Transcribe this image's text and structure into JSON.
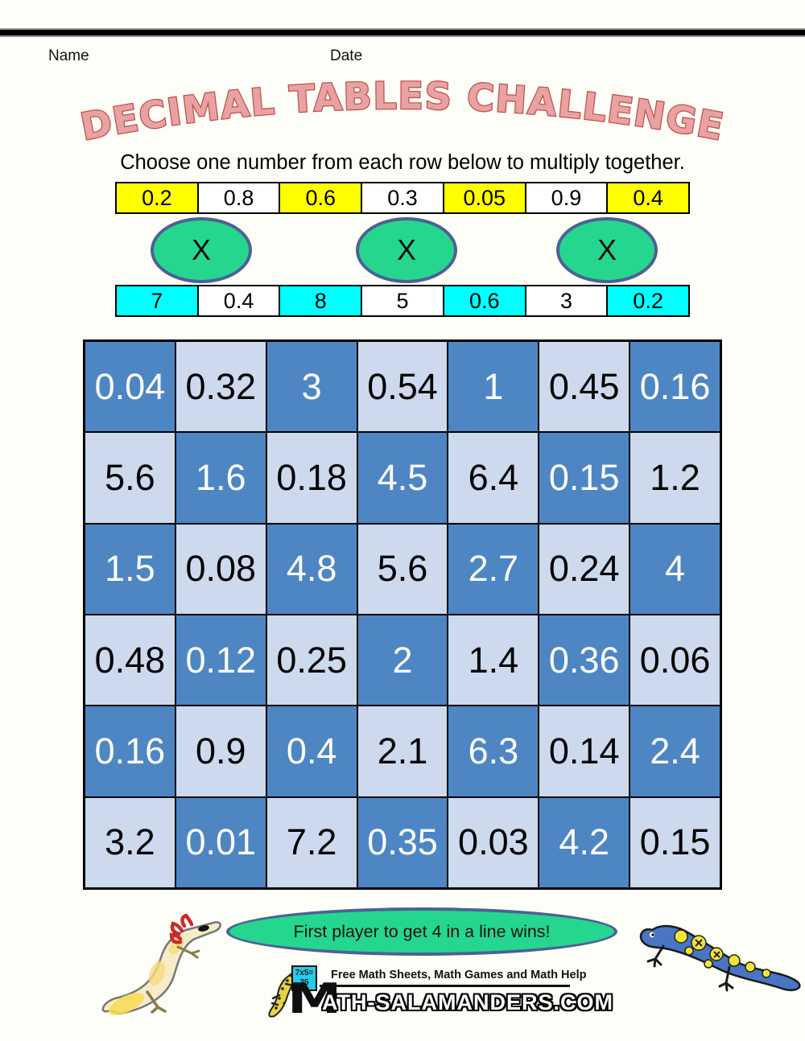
{
  "header": {
    "name_label": "Name",
    "date_label": "Date"
  },
  "title": {
    "text": "DECIMAL TABLES CHALLENGE"
  },
  "instruction": "Choose one number from each row below to multiply together.",
  "factor_rows": {
    "top": {
      "highlight": "yellow",
      "cells": [
        {
          "value": "0.2",
          "highlighted": true
        },
        {
          "value": "0.8",
          "highlighted": false
        },
        {
          "value": "0.6",
          "highlighted": true
        },
        {
          "value": "0.3",
          "highlighted": false
        },
        {
          "value": "0.05",
          "highlighted": true
        },
        {
          "value": "0.9",
          "highlighted": false
        },
        {
          "value": "0.4",
          "highlighted": true
        }
      ]
    },
    "bottom": {
      "highlight": "cyan",
      "cells": [
        {
          "value": "7",
          "highlighted": true
        },
        {
          "value": "0.4",
          "highlighted": false
        },
        {
          "value": "8",
          "highlighted": true
        },
        {
          "value": "5",
          "highlighted": false
        },
        {
          "value": "0.6",
          "highlighted": true
        },
        {
          "value": "3",
          "highlighted": false
        },
        {
          "value": "0.2",
          "highlighted": true
        }
      ]
    }
  },
  "multiply_ovals": {
    "symbol": "X",
    "count": 3
  },
  "grid": {
    "rows": [
      [
        "0.04",
        "0.32",
        "3",
        "0.54",
        "1",
        "0.45",
        "0.16"
      ],
      [
        "5.6",
        "1.6",
        "0.18",
        "4.5",
        "6.4",
        "0.15",
        "1.2"
      ],
      [
        "1.5",
        "0.08",
        "4.8",
        "5.6",
        "2.7",
        "0.24",
        "4"
      ],
      [
        "0.48",
        "0.12",
        "0.25",
        "2",
        "1.4",
        "0.36",
        "0.06"
      ],
      [
        "0.16",
        "0.9",
        "0.4",
        "2.1",
        "6.3",
        "0.14",
        "2.4"
      ],
      [
        "3.2",
        "0.01",
        "7.2",
        "0.35",
        "0.03",
        "4.2",
        "0.15"
      ]
    ]
  },
  "banner": {
    "text": "First player to get 4 in a line wins!"
  },
  "footer": {
    "tagline": "Free Math Sheets, Math Games and Math Help",
    "logo_m": "M",
    "site_rest": "ATH-SALAMANDERS.COM",
    "board_line1": "7x5=",
    "board_line2": "35"
  },
  "illustrations": {
    "left": "cream-axolotl-salamander-illustration",
    "right": "blue-spotted-salamander-illustration",
    "logo": "yellow-spotted-salamander-logo"
  },
  "colors": {
    "highlight_yellow": "#ffff00",
    "highlight_cyan": "#00ffff",
    "grid_dark_blue": "#4e86c4",
    "grid_light_blue": "#cdd9ed",
    "oval_green": "#25d78e",
    "oval_border_blue": "#4d6096",
    "title_fill_pink": "#e9a2a2",
    "title_outline_red": "#c4514e"
  }
}
